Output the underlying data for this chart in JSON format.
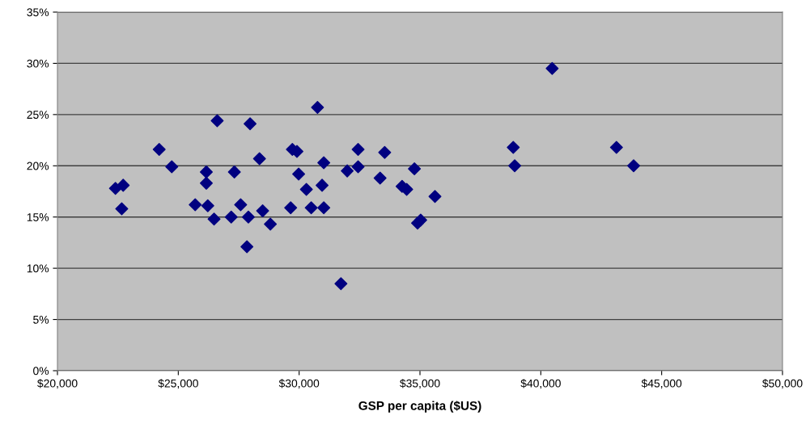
{
  "chart_data": {
    "type": "scatter",
    "xlabel": "GSP per capita ($US)",
    "marker": "diamond",
    "grid": "y",
    "xlim": [
      20000,
      50000
    ],
    "xticks": [
      {
        "value": 20000,
        "label": "$20,000"
      },
      {
        "value": 25000,
        "label": "$25,000"
      },
      {
        "value": 30000,
        "label": "$30,000"
      },
      {
        "value": 35000,
        "label": "$35,000"
      },
      {
        "value": 40000,
        "label": "$40,000"
      },
      {
        "value": 45000,
        "label": "$45,000"
      },
      {
        "value": 50000,
        "label": "$50,000"
      }
    ],
    "ylim": [
      0,
      35
    ],
    "yticks": [
      {
        "value": 0,
        "label": "0%"
      },
      {
        "value": 5,
        "label": "5%"
      },
      {
        "value": 10,
        "label": "10%"
      },
      {
        "value": 15,
        "label": "15%"
      },
      {
        "value": 20,
        "label": "20%"
      },
      {
        "value": 25,
        "label": "25%"
      },
      {
        "value": 30,
        "label": "30%"
      },
      {
        "value": 35,
        "label": "35%"
      }
    ],
    "series": [
      {
        "color": "#000080",
        "x": [
          22400,
          22720,
          22660,
          24210,
          24730,
          25700,
          26160,
          26160,
          26220,
          26480,
          26610,
          27190,
          27320,
          27580,
          27840,
          27900,
          27970,
          28360,
          28490,
          28810,
          29650,
          29720,
          29910,
          29980,
          30300,
          30500,
          30760,
          30950,
          31020,
          31020,
          31730,
          31990,
          32440,
          32440,
          33350,
          33540,
          34260,
          34450,
          34770,
          34900,
          35030,
          35620,
          38860,
          38920,
          40470,
          43130,
          43840
        ],
        "values": [
          17.8,
          18.1,
          15.8,
          21.6,
          19.9,
          16.2,
          19.4,
          18.3,
          16.1,
          14.8,
          24.4,
          15.0,
          19.4,
          16.2,
          12.1,
          15.0,
          24.1,
          20.7,
          15.6,
          14.3,
          15.9,
          21.6,
          21.4,
          19.2,
          17.7,
          15.9,
          25.7,
          18.1,
          20.3,
          15.9,
          8.5,
          19.5,
          21.6,
          19.9,
          18.8,
          21.3,
          18.0,
          17.7,
          19.7,
          14.4,
          14.7,
          17.0,
          21.8,
          20.0,
          29.5,
          21.8,
          20.0
        ]
      }
    ]
  }
}
